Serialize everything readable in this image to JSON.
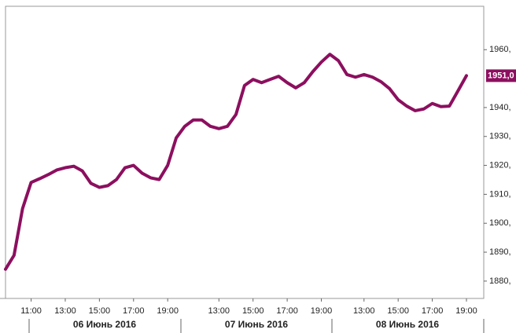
{
  "chart_data": {
    "type": "line",
    "categories": [
      null,
      null,
      null,
      "11:00",
      null,
      null,
      null,
      "13:00",
      null,
      null,
      null,
      "15:00",
      null,
      null,
      null,
      "17:00",
      null,
      null,
      null,
      "19:00",
      null,
      null,
      null,
      null,
      null,
      "13:00",
      null,
      null,
      null,
      "15:00",
      null,
      null,
      null,
      "17:00",
      null,
      null,
      null,
      "19:00",
      null,
      null,
      null,
      null,
      "13:00",
      null,
      null,
      null,
      "15:00",
      null,
      null,
      null,
      "17:00",
      null,
      null,
      null,
      "19:00"
    ],
    "days": [
      "06 Июнь 2016",
      "07 Июнь 2016",
      "08 Июнь 2016"
    ],
    "series": [
      {
        "color": "#8c0f5f",
        "values": [
          1884.1,
          1888.9,
          1905.1,
          1914.1,
          1915.4,
          1916.8,
          1918.4,
          1919.2,
          1919.7,
          1918.1,
          1913.8,
          1912.4,
          1913,
          1915.1,
          1919.2,
          1920,
          1917.3,
          1915.7,
          1915.1,
          1920,
          1929.5,
          1933.5,
          1935.7,
          1935.7,
          1933.5,
          1932.7,
          1933.5,
          1937.6,
          1947.6,
          1949.7,
          1948.6,
          1949.7,
          1950.8,
          1948.6,
          1946.8,
          1948.6,
          1952.4,
          1955.7,
          1958.4,
          1956.2,
          1951.4,
          1950.5,
          1951.4,
          1950.5,
          1948.9,
          1946.5,
          1942.7,
          1940.5,
          1938.9,
          1939.5,
          1941.4,
          1940.3,
          1940.5,
          1945.7,
          1951.0
        ],
        "last_value_label": "1951,0"
      }
    ],
    "ylim": [
      1874,
      1975
    ],
    "yticks": [
      {
        "value": 1880,
        "label": "1880,"
      },
      {
        "value": 1890,
        "label": "1890,"
      },
      {
        "value": 1900,
        "label": "1900,"
      },
      {
        "value": 1910,
        "label": "1910,"
      },
      {
        "value": 1920,
        "label": "1920,"
      },
      {
        "value": 1930,
        "label": "1930,"
      },
      {
        "value": 1940,
        "label": "1940,"
      },
      {
        "value": 1960,
        "label": "1960,"
      }
    ],
    "grid": false
  }
}
